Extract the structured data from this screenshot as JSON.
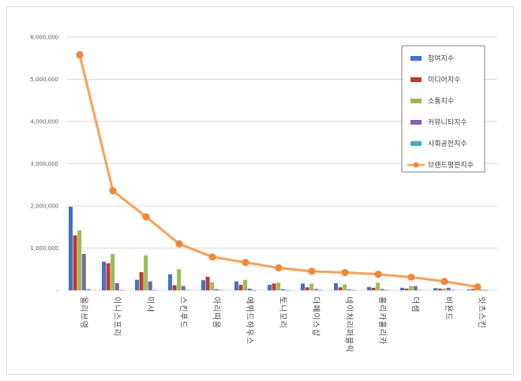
{
  "chart_data": {
    "type": "bar",
    "categories": [
      "올리브영",
      "이니스프리",
      "미샤",
      "스킨푸드",
      "아리따움",
      "에뛰드하우스",
      "토니모리",
      "더페이스샵",
      "네이처리퍼블릭",
      "홀리카홀리카",
      "더샘",
      "비욘드",
      "잇츠스킨"
    ],
    "y_ticks": [
      "6,000,000",
      "5,000,000",
      "4,000,000",
      "3,000,000",
      "2,000,000",
      "1,000,000",
      "-"
    ],
    "ylim": [
      0,
      6000000
    ],
    "grid": true,
    "legend_position": "top-right",
    "series": [
      {
        "name": "참여지수",
        "type": "bar",
        "color": "#4472c4",
        "values": [
          1980000,
          680000,
          250000,
          380000,
          240000,
          210000,
          130000,
          160000,
          170000,
          80000,
          60000,
          50000,
          20000
        ]
      },
      {
        "name": "미디어지수",
        "type": "bar",
        "color": "#c0392b",
        "values": [
          1300000,
          640000,
          430000,
          120000,
          320000,
          130000,
          160000,
          70000,
          70000,
          60000,
          40000,
          40000,
          30000
        ]
      },
      {
        "name": "소통지수",
        "type": "bar",
        "color": "#9bbb59",
        "values": [
          1420000,
          860000,
          830000,
          500000,
          190000,
          250000,
          180000,
          160000,
          140000,
          180000,
          100000,
          40000,
          20000
        ]
      },
      {
        "name": "커뮤니티지수",
        "type": "bar",
        "color": "#8064a2",
        "values": [
          860000,
          170000,
          210000,
          100000,
          30000,
          40000,
          30000,
          30000,
          20000,
          30000,
          100000,
          60000,
          15000
        ]
      },
      {
        "name": "사회공헌지수",
        "type": "bar",
        "color": "#4bacc6",
        "values": [
          30000,
          10000,
          10000,
          10000,
          10000,
          10000,
          10000,
          10000,
          10000,
          10000,
          10000,
          10000,
          10000
        ]
      },
      {
        "name": "브랜드평판지수",
        "type": "line",
        "color": "#f4a460",
        "values": [
          5580000,
          2360000,
          1740000,
          1100000,
          790000,
          660000,
          530000,
          450000,
          420000,
          380000,
          310000,
          210000,
          80000
        ]
      }
    ]
  }
}
